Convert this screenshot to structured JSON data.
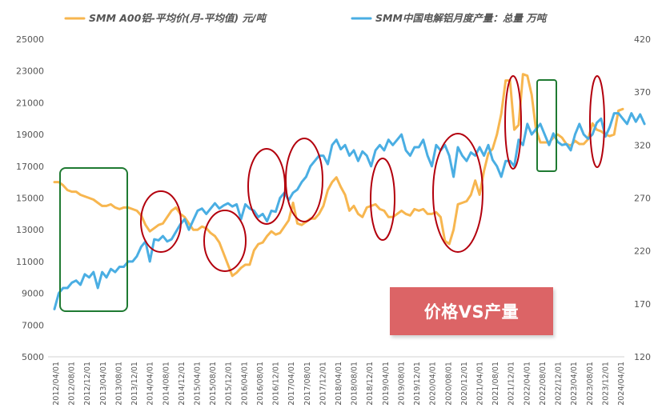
{
  "chart_data": {
    "type": "line",
    "legend_position": "top",
    "grid": false,
    "colors": {
      "price": "#f7b64f",
      "output": "#4aaee3",
      "red_ellipse": "#b3000d",
      "green_box": "#1f7a32",
      "banner": "#dc6466"
    },
    "left_axis": {
      "ylim": [
        5000,
        25000
      ],
      "ticks": [
        "5000",
        "7000",
        "9000",
        "11000",
        "13000",
        "15000",
        "17000",
        "19000",
        "21000",
        "23000",
        "25000"
      ]
    },
    "right_axis": {
      "ylim": [
        120,
        420
      ],
      "ticks": [
        "120",
        "170",
        "220",
        "270",
        "320",
        "370",
        "420"
      ]
    },
    "x_ticks": [
      "2012/04/01",
      "2012/08/01",
      "2012/12/01",
      "2013/04/01",
      "2013/08/01",
      "2013/12/01",
      "2014/04/01",
      "2014/08/01",
      "2014/12/01",
      "2015/04/01",
      "2015/08/01",
      "2015/12/01",
      "2016/04/01",
      "2016/08/01",
      "2016/12/01",
      "2017/04/01",
      "2017/08/01",
      "2017/12/01",
      "2018/04/01",
      "2018/08/01",
      "2018/12/01",
      "2019/04/01",
      "2019/08/01",
      "2019/12/01",
      "2020/04/01",
      "2020/08/01",
      "2020/12/01",
      "2021/04/01",
      "2021/08/01",
      "2021/12/01",
      "2022/04/01",
      "2022/08/01",
      "2022/12/01",
      "2023/04/01",
      "2023/08/01",
      "2023/12/01",
      "2024/04/01"
    ],
    "series": [
      {
        "name": "SMM A00铝-平均价(月-平均值) 元/吨",
        "axis": "left",
        "values": [
          16000,
          16000,
          15800,
          15500,
          15400,
          15400,
          15200,
          15100,
          15000,
          14900,
          14700,
          14500,
          14500,
          14600,
          14400,
          14300,
          14400,
          14400,
          14300,
          14200,
          13900,
          13300,
          12900,
          13100,
          13300,
          13400,
          13800,
          14200,
          14400,
          14000,
          13800,
          13400,
          13000,
          13000,
          13200,
          13100,
          12800,
          12600,
          12200,
          11500,
          10800,
          10100,
          10300,
          10600,
          10800,
          10800,
          11700,
          12100,
          12200,
          12600,
          12900,
          12700,
          12800,
          13200,
          13600,
          14700,
          13400,
          13300,
          13500,
          13700,
          13700,
          14000,
          14500,
          15500,
          16000,
          16300,
          15700,
          15200,
          14200,
          14500,
          14000,
          13800,
          14400,
          14500,
          14600,
          14300,
          14200,
          13800,
          13800,
          14000,
          14200,
          14000,
          13900,
          14300,
          14200,
          14300,
          14000,
          14000,
          14100,
          13800,
          12300,
          12100,
          13000,
          14600,
          14700,
          14800,
          15200,
          16100,
          15200,
          16700,
          17800,
          18100,
          19000,
          20300,
          22400,
          22400,
          19300,
          19600,
          22800,
          22700,
          21500,
          19300,
          18500,
          18500,
          18500,
          18800,
          19000,
          18800,
          18400,
          18300,
          18600,
          18400,
          18400,
          18700,
          19700,
          19300,
          19200,
          19000,
          18900,
          19000,
          20500,
          20600
        ],
        "color": "#f7b64f"
      },
      {
        "name": "SMM中国电解铝月度产量：总量 万吨",
        "axis": "right",
        "values": [
          165,
          180,
          185,
          185,
          190,
          192,
          188,
          198,
          195,
          200,
          185,
          200,
          195,
          203,
          200,
          205,
          205,
          210,
          210,
          215,
          224,
          229,
          210,
          231,
          230,
          234,
          229,
          231,
          238,
          245,
          250,
          240,
          249,
          258,
          260,
          255,
          260,
          265,
          260,
          263,
          265,
          262,
          264,
          250,
          264,
          260,
          258,
          252,
          255,
          248,
          258,
          257,
          270,
          275,
          268,
          275,
          278,
          285,
          290,
          300,
          305,
          310,
          310,
          302,
          320,
          325,
          316,
          320,
          310,
          315,
          305,
          314,
          310,
          300,
          315,
          320,
          315,
          325,
          320,
          325,
          330,
          315,
          310,
          318,
          318,
          325,
          310,
          300,
          320,
          315,
          320,
          310,
          290,
          318,
          310,
          305,
          313,
          310,
          318,
          310,
          320,
          306,
          300,
          290,
          305,
          305,
          300,
          325,
          320,
          340,
          330,
          335,
          340,
          330,
          320,
          331,
          323,
          320,
          321,
          315,
          330,
          340,
          330,
          326,
          330,
          341,
          345,
          328,
          337,
          350,
          350,
          345,
          340,
          350,
          342,
          349,
          340
        ],
        "color": "#4aaee3"
      }
    ],
    "annotations": [
      {
        "type": "ellipse",
        "color": "red",
        "cx_date_index": 25,
        "left_value_center": 13500
      },
      {
        "type": "ellipse",
        "color": "red",
        "cx_date_index": 42,
        "left_value_center": 12400
      },
      {
        "type": "ellipse",
        "color": "red",
        "cx_date_index": 60,
        "left_value_center": 15600
      },
      {
        "type": "ellipse",
        "color": "red",
        "cx_date_index": 75,
        "left_value_center": 15700
      },
      {
        "type": "ellipse",
        "color": "red",
        "cx_date_index": 90,
        "left_value_center": 14800
      },
      {
        "type": "ellipse",
        "color": "red",
        "cx_date_index": 106,
        "left_value_center": 15000
      },
      {
        "type": "ellipse",
        "color": "red",
        "cx_date_index": 122,
        "left_value_center": 19600
      },
      {
        "type": "ellipse",
        "color": "red",
        "cx_date_index": 148,
        "left_value_center": 20500
      },
      {
        "type": "box",
        "color": "green",
        "from_index": 2,
        "to_index": 20
      },
      {
        "type": "box",
        "color": "green",
        "from_index": 129,
        "to_index": 134
      }
    ]
  },
  "banner": {
    "label": "价格VS产量"
  }
}
